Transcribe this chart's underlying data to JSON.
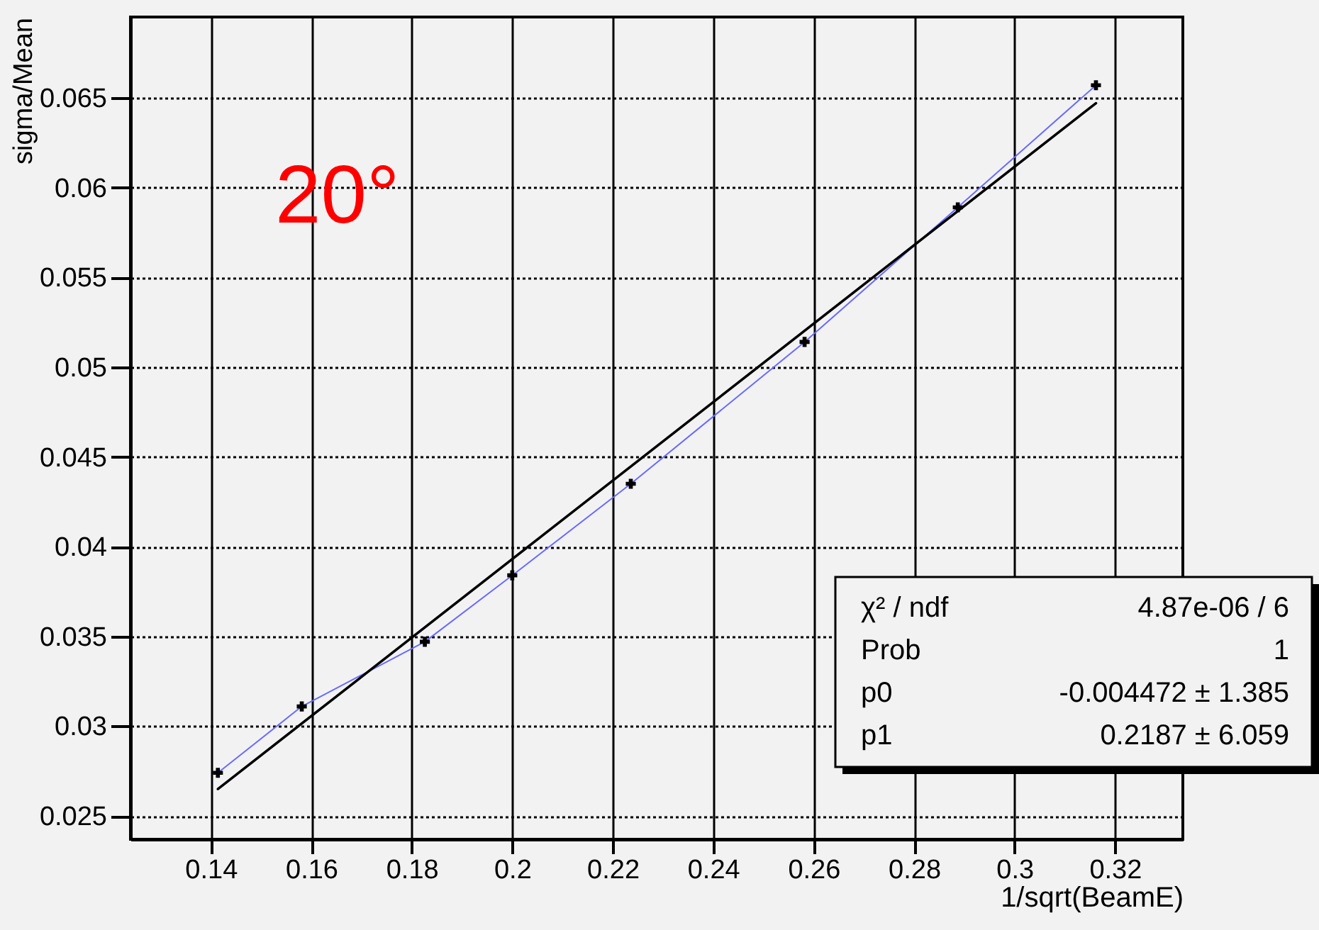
{
  "chart_data": {
    "type": "line",
    "xlabel": "1/sqrt(BeamE)",
    "ylabel": "sigma/Mean",
    "annotations": [
      "20°",
      "χ² / ndf",
      "4.87e-06 / 6",
      "Prob",
      "1",
      "p0",
      "-0.004472 ± 1.385",
      "p1",
      "0.2187 ± 6.059"
    ],
    "series": [
      {
        "color": "#6a6aff",
        "marker": "cross",
        "x": [
          0.1414,
          0.1581,
          0.1826,
          0.2,
          0.2236,
          0.2582,
          0.2887,
          0.3162
        ],
        "values": [
          0.0274,
          0.0311,
          0.0347,
          0.0384,
          0.0435,
          0.0514,
          0.0589,
          0.0657
        ]
      },
      {
        "color": "#000000",
        "marker": "none",
        "x": [
          0.1414,
          0.3162
        ],
        "values": [
          0.0265,
          0.0647
        ]
      }
    ],
    "xlim": [
      0.124,
      0.3335
    ],
    "ylim": [
      0.0237,
      0.0695
    ],
    "xticks": [
      0.14,
      0.16,
      0.18,
      0.2,
      0.22,
      0.24,
      0.26,
      0.28,
      0.3,
      0.32
    ],
    "yticks": [
      0.025,
      0.03,
      0.035,
      0.04,
      0.045,
      0.05,
      0.055,
      0.06,
      0.065
    ],
    "grid": true
  }
}
